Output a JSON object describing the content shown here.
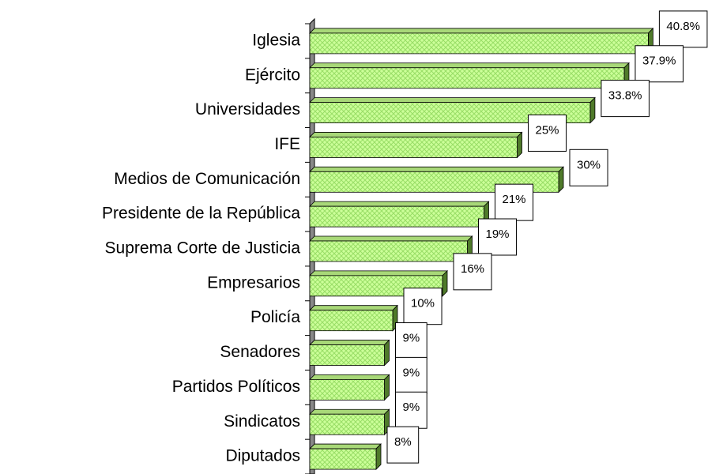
{
  "chart_data": {
    "type": "bar",
    "orientation": "horizontal",
    "categories": [
      "Iglesia",
      "Ejército",
      "Universidades",
      "IFE",
      "Medios de Comunicación",
      "Presidente de la República",
      "Suprema Corte de Justicia",
      "Empresarios",
      "Policía",
      "Senadores",
      "Partidos Políticos",
      "Sindicatos",
      "Diputados"
    ],
    "values": [
      40.8,
      37.9,
      33.8,
      25,
      30,
      21,
      19,
      16,
      10,
      9,
      9,
      9,
      8
    ],
    "value_labels": [
      "40.8%",
      "37.9%",
      "33.8%",
      "25%",
      "30%",
      "21%",
      "19%",
      "16%",
      "10%",
      "9%",
      "9%",
      "9%",
      "8%"
    ],
    "color": "#ccff99",
    "xlim": [
      0,
      48
    ]
  }
}
